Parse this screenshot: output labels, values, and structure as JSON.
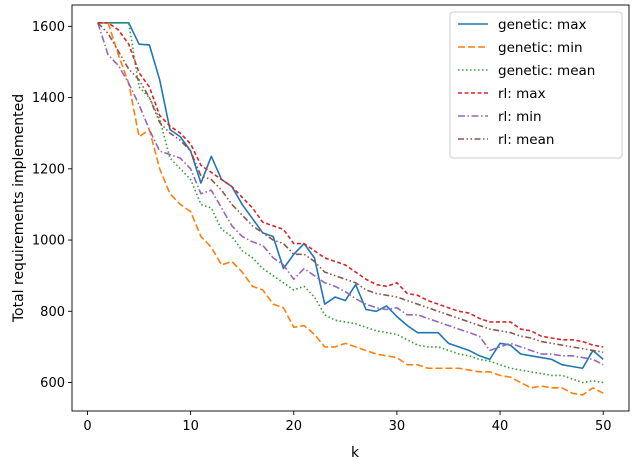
{
  "chart_data": {
    "type": "line",
    "title": "",
    "xlabel": "k",
    "ylabel": "Total requirements implemented",
    "xlim": [
      -1.5,
      52.5
    ],
    "ylim": [
      520,
      1660
    ],
    "xticks": [
      0,
      10,
      20,
      30,
      40,
      50
    ],
    "yticks": [
      600,
      800,
      1000,
      1200,
      1400,
      1600
    ],
    "grid": false,
    "legend_position": "top-right",
    "x": [
      1,
      2,
      3,
      4,
      5,
      6,
      7,
      8,
      9,
      10,
      11,
      12,
      13,
      14,
      15,
      16,
      17,
      18,
      19,
      20,
      21,
      22,
      23,
      24,
      25,
      26,
      27,
      28,
      29,
      30,
      31,
      32,
      33,
      34,
      35,
      36,
      37,
      38,
      39,
      40,
      41,
      42,
      43,
      44,
      45,
      46,
      47,
      48,
      49,
      50
    ],
    "series": [
      {
        "name": "genetic: max",
        "color": "#1f77b4",
        "dash": "solid",
        "values": [
          1610,
          1610,
          1610,
          1610,
          1550,
          1548,
          1450,
          1310,
          1290,
          1250,
          1160,
          1235,
          1170,
          1150,
          1100,
          1060,
          1020,
          1010,
          920,
          960,
          990,
          950,
          820,
          840,
          830,
          875,
          805,
          800,
          815,
          785,
          760,
          740,
          740,
          740,
          710,
          700,
          690,
          675,
          665,
          710,
          705,
          680,
          675,
          670,
          665,
          650,
          645,
          640,
          690,
          665
        ]
      },
      {
        "name": "genetic: min",
        "color": "#ff7f0e",
        "dash": "dashed",
        "values": [
          1610,
          1610,
          1520,
          1440,
          1290,
          1310,
          1200,
          1130,
          1100,
          1080,
          1010,
          980,
          930,
          940,
          910,
          870,
          860,
          820,
          810,
          755,
          760,
          735,
          700,
          700,
          710,
          700,
          690,
          680,
          675,
          670,
          650,
          650,
          640,
          640,
          640,
          640,
          635,
          630,
          630,
          620,
          615,
          600,
          585,
          590,
          585,
          585,
          570,
          565,
          585,
          570
        ]
      },
      {
        "name": "genetic: mean",
        "color": "#2ca02c",
        "dash": "dotted",
        "values": [
          1610,
          1610,
          1610,
          1610,
          1430,
          1400,
          1340,
          1230,
          1200,
          1170,
          1100,
          1090,
          1030,
          1010,
          970,
          950,
          920,
          900,
          880,
          860,
          870,
          840,
          790,
          775,
          770,
          765,
          755,
          745,
          740,
          735,
          720,
          705,
          700,
          700,
          690,
          680,
          675,
          665,
          660,
          650,
          640,
          635,
          630,
          625,
          620,
          620,
          610,
          600,
          605,
          600
        ]
      },
      {
        "name": "rl: max",
        "color": "#d62728",
        "dash": "dash-short",
        "values": [
          1610,
          1610,
          1590,
          1550,
          1470,
          1430,
          1350,
          1320,
          1300,
          1270,
          1210,
          1190,
          1170,
          1150,
          1120,
          1090,
          1050,
          1040,
          1030,
          990,
          990,
          970,
          950,
          940,
          930,
          910,
          890,
          875,
          870,
          880,
          850,
          845,
          830,
          820,
          810,
          800,
          795,
          780,
          770,
          770,
          770,
          750,
          745,
          730,
          725,
          720,
          720,
          715,
          705,
          700
        ]
      },
      {
        "name": "rl: min",
        "color": "#9467bd",
        "dash": "dashdot",
        "values": [
          1610,
          1520,
          1490,
          1440,
          1380,
          1310,
          1250,
          1240,
          1230,
          1200,
          1130,
          1140,
          1090,
          1040,
          1010,
          995,
          985,
          950,
          930,
          890,
          920,
          900,
          880,
          870,
          855,
          835,
          820,
          810,
          805,
          810,
          790,
          790,
          780,
          770,
          760,
          750,
          740,
          730,
          690,
          700,
          710,
          700,
          690,
          680,
          680,
          675,
          675,
          670,
          665,
          650
        ]
      },
      {
        "name": "rl: mean",
        "color": "#8c564b",
        "dash": "dashdotdot",
        "values": [
          1610,
          1580,
          1530,
          1480,
          1450,
          1400,
          1330,
          1300,
          1280,
          1250,
          1180,
          1170,
          1140,
          1100,
          1070,
          1040,
          1020,
          1000,
          990,
          960,
          960,
          940,
          910,
          900,
          890,
          880,
          860,
          850,
          845,
          840,
          830,
          820,
          810,
          800,
          790,
          780,
          770,
          760,
          750,
          745,
          740,
          730,
          725,
          715,
          710,
          705,
          700,
          695,
          690,
          685
        ]
      }
    ]
  }
}
